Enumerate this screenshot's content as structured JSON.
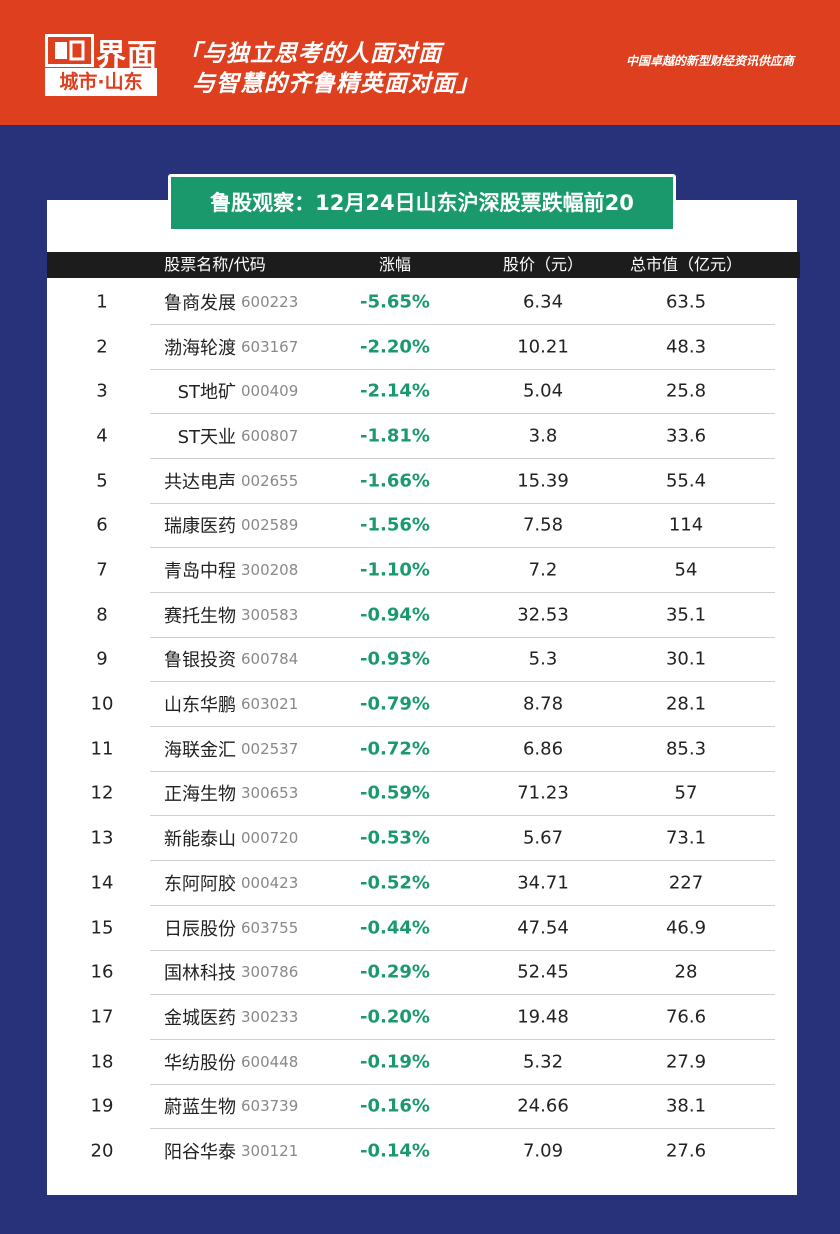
{
  "header": {
    "brand": "界面",
    "city": "城市·山东",
    "slogan": [
      "「与独立思考的人面对面",
      "与智慧的齐鲁精英面对面」"
    ],
    "tagline": "中国卓越的新型财经资讯供应商"
  },
  "table": {
    "title": "鲁股观察：12月24日山东沪深股票跌幅前20",
    "columns": [
      "股票名称/代码",
      "涨幅",
      "股价（元）",
      "总市值（亿元）"
    ],
    "rows": [
      [
        "1",
        "鲁商发展",
        "600223",
        "-5.65%",
        "6.34",
        "63.5"
      ],
      [
        "2",
        "渤海轮渡",
        "603167",
        "-2.20%",
        "10.21",
        "48.3"
      ],
      [
        "3",
        "ST地矿",
        "000409",
        "-2.14%",
        "5.04",
        "25.8"
      ],
      [
        "4",
        "ST天业",
        "600807",
        "-1.81%",
        "3.8",
        "33.6"
      ],
      [
        "5",
        "共达电声",
        "002655",
        "-1.66%",
        "15.39",
        "55.4"
      ],
      [
        "6",
        "瑞康医药",
        "002589",
        "-1.56%",
        "7.58",
        "114"
      ],
      [
        "7",
        "青岛中程",
        "300208",
        "-1.10%",
        "7.2",
        "54"
      ],
      [
        "8",
        "赛托生物",
        "300583",
        "-0.94%",
        "32.53",
        "35.1"
      ],
      [
        "9",
        "鲁银投资",
        "600784",
        "-0.93%",
        "5.3",
        "30.1"
      ],
      [
        "10",
        "山东华鹏",
        "603021",
        "-0.79%",
        "8.78",
        "28.1"
      ],
      [
        "11",
        "海联金汇",
        "002537",
        "-0.72%",
        "6.86",
        "85.3"
      ],
      [
        "12",
        "正海生物",
        "300653",
        "-0.59%",
        "71.23",
        "57"
      ],
      [
        "13",
        "新能泰山",
        "000720",
        "-0.53%",
        "5.67",
        "73.1"
      ],
      [
        "14",
        "东阿阿胶",
        "000423",
        "-0.52%",
        "34.71",
        "227"
      ],
      [
        "15",
        "日辰股份",
        "603755",
        "-0.44%",
        "47.54",
        "46.9"
      ],
      [
        "16",
        "国林科技",
        "300786",
        "-0.29%",
        "52.45",
        "28"
      ],
      [
        "17",
        "金城医药",
        "300233",
        "-0.20%",
        "19.48",
        "76.6"
      ],
      [
        "18",
        "华纺股份",
        "600448",
        "-0.19%",
        "5.32",
        "27.9"
      ],
      [
        "19",
        "蔚蓝生物",
        "603739",
        "-0.16%",
        "24.66",
        "38.1"
      ],
      [
        "20",
        "阳谷华泰",
        "300121",
        "-0.14%",
        "7.09",
        "27.6"
      ]
    ]
  }
}
